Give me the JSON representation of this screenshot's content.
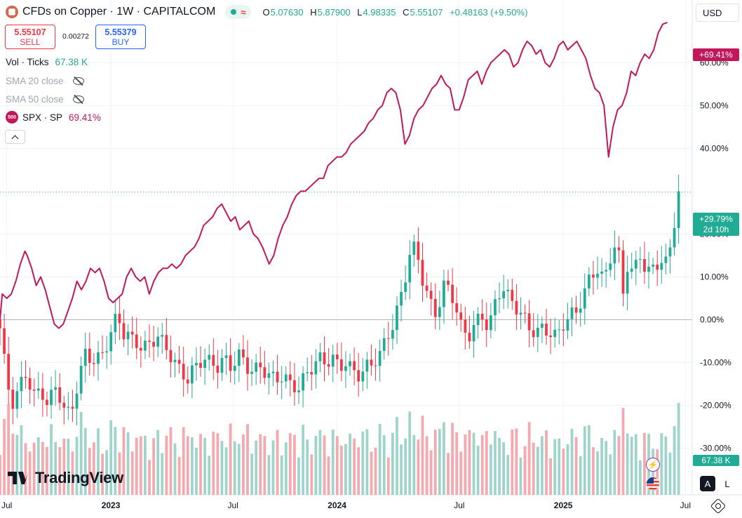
{
  "legend": {
    "title": "CFDs on Copper · 1W · CAPITALCOM",
    "symbol_icon": "copper-logo-icon",
    "status_icon": "market-open-dot-icon",
    "wave_icon": "wave-icon",
    "ohlc": {
      "o_key": "O",
      "o_value": "5.07630",
      "h_key": "H",
      "h_value": "5.87900",
      "l_key": "L",
      "l_value": "4.98335",
      "c_key": "C",
      "c_value": "5.55107",
      "change": "+0.48163 (+9.50%)"
    }
  },
  "trade": {
    "sell_price": "5.55107",
    "sell_label": "SELL",
    "spread": "0.00272",
    "buy_price": "5.55379",
    "buy_label": "BUY"
  },
  "indicators": {
    "volume_name": "Vol · Ticks",
    "volume_value": "67.38 K",
    "sma20_name": "SMA 20 close",
    "sma50_name": "SMA 50 close",
    "compare_badge": "500",
    "compare_name": "SPX · SP",
    "compare_value": "69.41%"
  },
  "currency": "USD",
  "axis_badges": {
    "spx_value": "+69.41%",
    "price_value": "+29.79%",
    "countdown": "2d 10h",
    "volume_value": "67.38 K"
  },
  "brand": "TradingView",
  "controls": {
    "auto_label": "A",
    "log_label": "L"
  },
  "colors": {
    "up": "#22ab94",
    "down": "#f23645",
    "compare": "#c2185b",
    "up_vol": "#9fd4cb",
    "down_vol": "#f5a9ae"
  },
  "chart_data": {
    "type": "candlestick",
    "interval": "1W",
    "y_axis_ticks": [
      "60.00%",
      "50.00%",
      "40.00%",
      "20.00%",
      "10.00%",
      "0.00%",
      "-10.00%",
      "-20.00%",
      "-30.00%"
    ],
    "y_axis_values": [
      60,
      50,
      40,
      20,
      10,
      0,
      -10,
      -20,
      -30
    ],
    "ylim": [
      -34,
      73
    ],
    "x_axis_ticks": [
      "Jul",
      "2023",
      "Jul",
      "2024",
      "Jul",
      "2025",
      "Jul"
    ],
    "x_axis_positions": [
      2022.54,
      2023.0,
      2023.54,
      2024.0,
      2024.54,
      2025.0,
      2025.54
    ],
    "xlim": [
      2022.51,
      2025.57
    ],
    "copper_pct_series": [
      [
        2022.51,
        -2
      ],
      [
        2022.53,
        -10
      ],
      [
        2022.56,
        -20
      ],
      [
        2022.59,
        -17
      ],
      [
        2022.62,
        -12
      ],
      [
        2022.66,
        -18
      ],
      [
        2022.69,
        -16
      ],
      [
        2022.72,
        -20
      ],
      [
        2022.76,
        -15
      ],
      [
        2022.79,
        -21
      ],
      [
        2022.82,
        -22
      ],
      [
        2022.86,
        -14
      ],
      [
        2022.89,
        -7
      ],
      [
        2022.92,
        -10
      ],
      [
        2022.95,
        -9
      ],
      [
        2022.98,
        -6
      ],
      [
        2023.01,
        -2
      ],
      [
        2023.03,
        2
      ],
      [
        2023.05,
        -3
      ],
      [
        2023.08,
        -4
      ],
      [
        2023.11,
        -5
      ],
      [
        2023.14,
        -7
      ],
      [
        2023.18,
        -5
      ],
      [
        2023.21,
        -4
      ],
      [
        2023.24,
        -6
      ],
      [
        2023.28,
        -10
      ],
      [
        2023.31,
        -12
      ],
      [
        2023.34,
        -14
      ],
      [
        2023.37,
        -11
      ],
      [
        2023.41,
        -9
      ],
      [
        2023.44,
        -10
      ],
      [
        2023.47,
        -11
      ],
      [
        2023.5,
        -9
      ],
      [
        2023.53,
        -11
      ],
      [
        2023.57,
        -8
      ],
      [
        2023.6,
        -11
      ],
      [
        2023.63,
        -12
      ],
      [
        2023.66,
        -11
      ],
      [
        2023.7,
        -13
      ],
      [
        2023.73,
        -14
      ],
      [
        2023.76,
        -13
      ],
      [
        2023.79,
        -15
      ],
      [
        2023.83,
        -16
      ],
      [
        2023.86,
        -13
      ],
      [
        2023.89,
        -11
      ],
      [
        2023.92,
        -9
      ],
      [
        2023.95,
        -10
      ],
      [
        2023.98,
        -9
      ],
      [
        2024.01,
        -11
      ],
      [
        2024.04,
        -10
      ],
      [
        2024.07,
        -12
      ],
      [
        2024.1,
        -13
      ],
      [
        2024.13,
        -11
      ],
      [
        2024.16,
        -10
      ],
      [
        2024.19,
        -8
      ],
      [
        2024.22,
        -4
      ],
      [
        2024.25,
        -1
      ],
      [
        2024.28,
        5
      ],
      [
        2024.31,
        12
      ],
      [
        2024.33,
        18
      ],
      [
        2024.36,
        14
      ],
      [
        2024.38,
        9
      ],
      [
        2024.41,
        4
      ],
      [
        2024.44,
        1
      ],
      [
        2024.47,
        8
      ],
      [
        2024.5,
        7
      ],
      [
        2024.53,
        2
      ],
      [
        2024.55,
        -2
      ],
      [
        2024.58,
        -4
      ],
      [
        2024.61,
        -1
      ],
      [
        2024.64,
        1
      ],
      [
        2024.67,
        -2
      ],
      [
        2024.7,
        4
      ],
      [
        2024.73,
        8
      ],
      [
        2024.76,
        5
      ],
      [
        2024.79,
        3
      ],
      [
        2024.82,
        1
      ],
      [
        2024.85,
        -2
      ],
      [
        2024.88,
        -3
      ],
      [
        2024.91,
        -2
      ],
      [
        2024.94,
        -3
      ],
      [
        2024.97,
        -4
      ],
      [
        2025.0,
        -1
      ],
      [
        2025.03,
        1
      ],
      [
        2025.06,
        2
      ],
      [
        2025.09,
        6
      ],
      [
        2025.12,
        10
      ],
      [
        2025.15,
        12
      ],
      [
        2025.18,
        9
      ],
      [
        2025.21,
        15
      ],
      [
        2025.24,
        19
      ],
      [
        2025.26,
        4
      ],
      [
        2025.28,
        13
      ],
      [
        2025.31,
        11
      ],
      [
        2025.34,
        15
      ],
      [
        2025.37,
        11
      ],
      [
        2025.4,
        12
      ],
      [
        2025.43,
        14
      ],
      [
        2025.46,
        13
      ],
      [
        2025.48,
        19
      ],
      [
        2025.51,
        29.79
      ]
    ],
    "compare_series": {
      "name": "SPX · SP",
      "values": [
        [
          2022.51,
          0
        ],
        [
          2022.52,
          6
        ],
        [
          2022.54,
          5
        ],
        [
          2022.56,
          6
        ],
        [
          2022.58,
          9
        ],
        [
          2022.6,
          13
        ],
        [
          2022.62,
          16
        ],
        [
          2022.63,
          15
        ],
        [
          2022.65,
          12
        ],
        [
          2022.67,
          8
        ],
        [
          2022.69,
          10
        ],
        [
          2022.71,
          7
        ],
        [
          2022.73,
          3
        ],
        [
          2022.75,
          -1
        ],
        [
          2022.77,
          -2
        ],
        [
          2022.79,
          -1
        ],
        [
          2022.81,
          2
        ],
        [
          2022.83,
          5
        ],
        [
          2022.85,
          9
        ],
        [
          2022.87,
          7
        ],
        [
          2022.89,
          9
        ],
        [
          2022.91,
          12
        ],
        [
          2022.93,
          11
        ],
        [
          2022.95,
          12
        ],
        [
          2022.97,
          9
        ],
        [
          2022.99,
          5
        ],
        [
          2023.01,
          4
        ],
        [
          2023.03,
          5
        ],
        [
          2023.05,
          6
        ],
        [
          2023.07,
          10
        ],
        [
          2023.09,
          12
        ],
        [
          2023.11,
          10
        ],
        [
          2023.13,
          9
        ],
        [
          2023.15,
          10
        ],
        [
          2023.17,
          6
        ],
        [
          2023.19,
          9
        ],
        [
          2023.21,
          11
        ],
        [
          2023.23,
          12
        ],
        [
          2023.25,
          12
        ],
        [
          2023.27,
          13
        ],
        [
          2023.29,
          12
        ],
        [
          2023.31,
          13
        ],
        [
          2023.33,
          15
        ],
        [
          2023.35,
          16
        ],
        [
          2023.37,
          17
        ],
        [
          2023.39,
          19
        ],
        [
          2023.41,
          22
        ],
        [
          2023.43,
          23
        ],
        [
          2023.45,
          24
        ],
        [
          2023.47,
          26
        ],
        [
          2023.49,
          27
        ],
        [
          2023.51,
          25
        ],
        [
          2023.53,
          23
        ],
        [
          2023.55,
          24
        ],
        [
          2023.57,
          21
        ],
        [
          2023.59,
          22
        ],
        [
          2023.61,
          23
        ],
        [
          2023.63,
          20
        ],
        [
          2023.65,
          19
        ],
        [
          2023.67,
          17
        ],
        [
          2023.7,
          13
        ],
        [
          2023.72,
          15
        ],
        [
          2023.74,
          19
        ],
        [
          2023.76,
          22
        ],
        [
          2023.78,
          24
        ],
        [
          2023.8,
          27
        ],
        [
          2023.82,
          29
        ],
        [
          2023.84,
          30
        ],
        [
          2023.86,
          30
        ],
        [
          2023.88,
          31
        ],
        [
          2023.9,
          32
        ],
        [
          2023.92,
          33
        ],
        [
          2023.94,
          33
        ],
        [
          2023.96,
          36
        ],
        [
          2023.98,
          37
        ],
        [
          2024.0,
          38
        ],
        [
          2024.02,
          38
        ],
        [
          2024.04,
          39
        ],
        [
          2024.06,
          41
        ],
        [
          2024.08,
          42
        ],
        [
          2024.1,
          43
        ],
        [
          2024.12,
          44
        ],
        [
          2024.14,
          46
        ],
        [
          2024.16,
          47
        ],
        [
          2024.18,
          49
        ],
        [
          2024.2,
          50
        ],
        [
          2024.22,
          53
        ],
        [
          2024.24,
          54
        ],
        [
          2024.26,
          53
        ],
        [
          2024.28,
          49
        ],
        [
          2024.3,
          41
        ],
        [
          2024.32,
          43
        ],
        [
          2024.34,
          47
        ],
        [
          2024.36,
          49
        ],
        [
          2024.38,
          50
        ],
        [
          2024.4,
          52
        ],
        [
          2024.42,
          54
        ],
        [
          2024.44,
          55
        ],
        [
          2024.46,
          57
        ],
        [
          2024.48,
          55
        ],
        [
          2024.5,
          54
        ],
        [
          2024.52,
          49
        ],
        [
          2024.54,
          49
        ],
        [
          2024.56,
          52
        ],
        [
          2024.58,
          56
        ],
        [
          2024.6,
          57
        ],
        [
          2024.62,
          58
        ],
        [
          2024.64,
          55
        ],
        [
          2024.66,
          58
        ],
        [
          2024.68,
          60
        ],
        [
          2024.7,
          61
        ],
        [
          2024.72,
          62
        ],
        [
          2024.74,
          63
        ],
        [
          2024.76,
          62
        ],
        [
          2024.78,
          59
        ],
        [
          2024.8,
          60
        ],
        [
          2024.82,
          63
        ],
        [
          2024.84,
          65
        ],
        [
          2024.86,
          64
        ],
        [
          2024.88,
          62
        ],
        [
          2024.9,
          63
        ],
        [
          2024.92,
          60
        ],
        [
          2024.94,
          59
        ],
        [
          2024.96,
          61
        ],
        [
          2024.98,
          64
        ],
        [
          2025.0,
          65
        ],
        [
          2025.02,
          63
        ],
        [
          2025.04,
          64
        ],
        [
          2025.06,
          65
        ],
        [
          2025.08,
          63
        ],
        [
          2025.1,
          61
        ],
        [
          2025.12,
          57
        ],
        [
          2025.14,
          54
        ],
        [
          2025.16,
          53
        ],
        [
          2025.18,
          50
        ],
        [
          2025.2,
          38
        ],
        [
          2025.22,
          45
        ],
        [
          2025.24,
          49
        ],
        [
          2025.26,
          50
        ],
        [
          2025.28,
          53
        ],
        [
          2025.3,
          58
        ],
        [
          2025.32,
          57
        ],
        [
          2025.34,
          60
        ],
        [
          2025.36,
          62
        ],
        [
          2025.38,
          61
        ],
        [
          2025.4,
          63
        ],
        [
          2025.42,
          67
        ],
        [
          2025.44,
          69
        ],
        [
          2025.46,
          69.41
        ]
      ]
    }
  }
}
